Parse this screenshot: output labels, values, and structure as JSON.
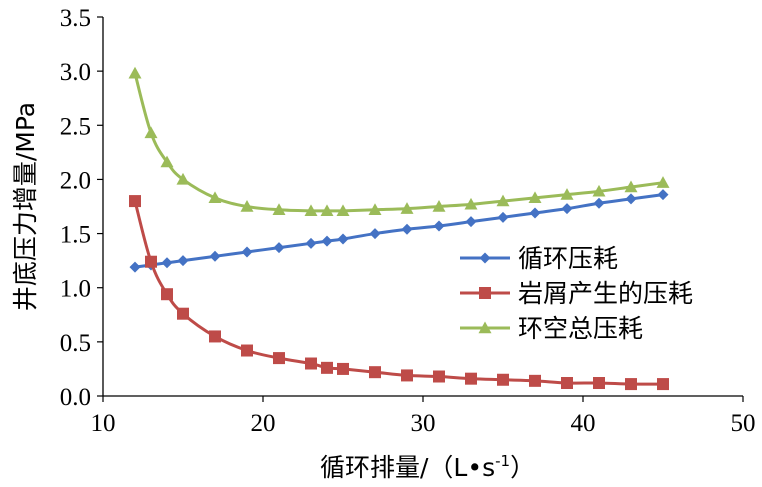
{
  "chart_data": {
    "type": "line",
    "xlabel_main": "循环排量/（L•s",
    "xlabel_sup": "-1",
    "xlabel_close": "）",
    "ylabel": "井底压力增量/MPa",
    "xlim": [
      10,
      50
    ],
    "ylim": [
      0,
      3.5
    ],
    "x_ticks": [
      "10",
      "20",
      "30",
      "40",
      "50"
    ],
    "y_ticks": [
      "0.0",
      "0.5",
      "1.0",
      "1.5",
      "2.0",
      "2.5",
      "3.0",
      "3.5"
    ],
    "legend_position": "center-right",
    "series": [
      {
        "name": "循环压耗",
        "color": "#4472C4",
        "marker": "diamond",
        "x": [
          12,
          13,
          14,
          15,
          17,
          19,
          21,
          23,
          24,
          25,
          27,
          29,
          31,
          33,
          35,
          37,
          39,
          41,
          43,
          45
        ],
        "y": [
          1.19,
          1.21,
          1.23,
          1.25,
          1.29,
          1.33,
          1.37,
          1.41,
          1.43,
          1.45,
          1.5,
          1.54,
          1.57,
          1.61,
          1.65,
          1.69,
          1.73,
          1.78,
          1.82,
          1.86
        ]
      },
      {
        "name": "岩屑产生的压耗",
        "color": "#BE4B48",
        "marker": "square",
        "x": [
          12,
          13,
          14,
          15,
          17,
          19,
          21,
          23,
          24,
          25,
          27,
          29,
          31,
          33,
          35,
          37,
          39,
          41,
          43,
          45
        ],
        "y": [
          1.8,
          1.24,
          0.94,
          0.76,
          0.55,
          0.42,
          0.35,
          0.3,
          0.26,
          0.25,
          0.22,
          0.19,
          0.18,
          0.16,
          0.15,
          0.14,
          0.12,
          0.12,
          0.11,
          0.11
        ]
      },
      {
        "name": "环空总压耗",
        "color": "#9BBB59",
        "marker": "triangle",
        "x": [
          12,
          13,
          14,
          15,
          17,
          19,
          21,
          23,
          24,
          25,
          27,
          29,
          31,
          33,
          35,
          37,
          39,
          41,
          43,
          45
        ],
        "y": [
          2.98,
          2.43,
          2.16,
          2.0,
          1.83,
          1.75,
          1.72,
          1.71,
          1.71,
          1.71,
          1.72,
          1.73,
          1.75,
          1.77,
          1.8,
          1.83,
          1.86,
          1.89,
          1.93,
          1.97
        ]
      }
    ]
  }
}
